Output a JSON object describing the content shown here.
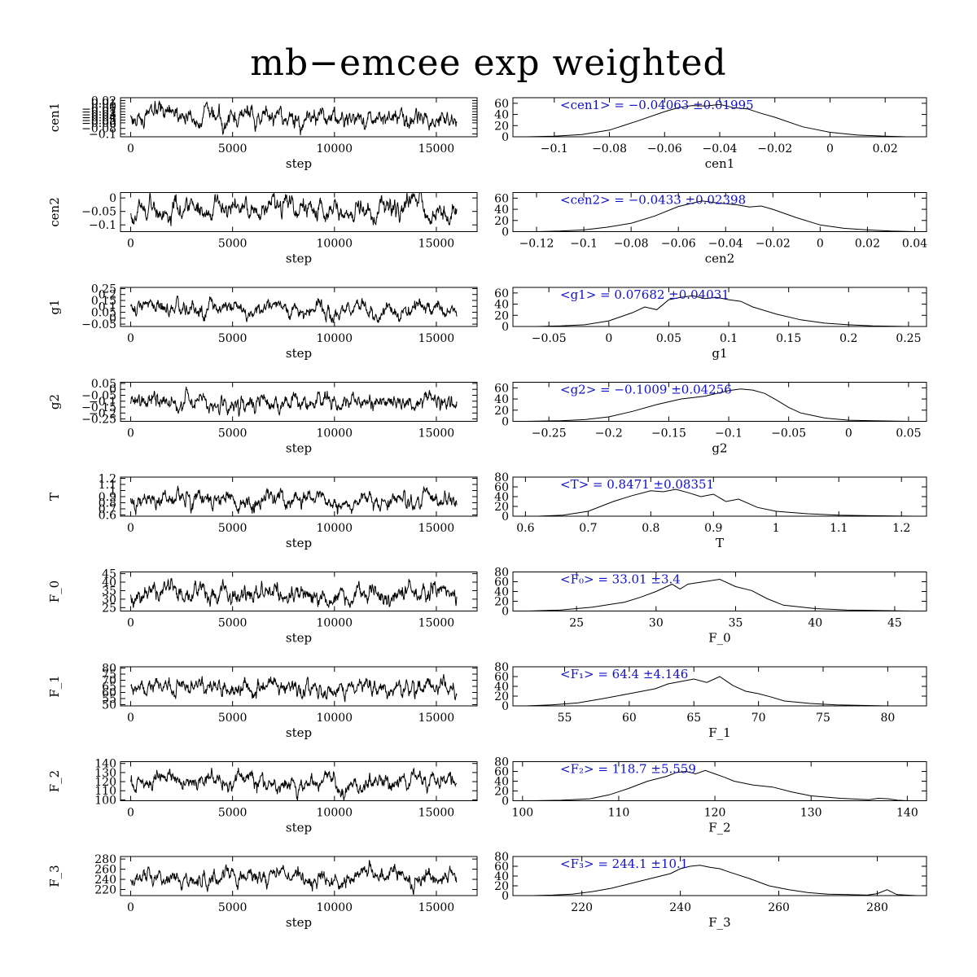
{
  "title": "mb−emcee exp weighted",
  "colors": {
    "line": "#000000",
    "annotation": "#1010c8"
  },
  "chart_data": [
    {
      "type": "line",
      "role": "trace",
      "ylabel": "cen1",
      "xlabel": "step",
      "xticks": [
        0,
        5000,
        10000,
        15000
      ],
      "yticks": [
        "0.02",
        "0.01",
        "0",
        "−0.01",
        "−0.02",
        "−0.03",
        "−0.04",
        "−0.05",
        "−0.06",
        "−0.08",
        "−0.1"
      ],
      "xlim": [
        -500,
        17000
      ],
      "ylim": [
        -0.11,
        0.03
      ],
      "mean": -0.04063,
      "sd": 0.01995,
      "n_steps": 16000
    },
    {
      "type": "line",
      "role": "histogram",
      "xlabel": "cen1",
      "xticks": [
        "−0.1",
        "−0.08",
        "−0.06",
        "−0.04",
        "−0.02",
        "0",
        "0.02"
      ],
      "yticks": [
        "0",
        "20",
        "40",
        "60"
      ],
      "xlim": [
        -0.115,
        0.035
      ],
      "ylim": [
        0,
        70
      ],
      "annotation": "<cen1> = −0.04063 ±0.01995",
      "x": [
        -0.11,
        -0.1,
        -0.09,
        -0.08,
        -0.07,
        -0.06,
        -0.055,
        -0.05,
        -0.045,
        -0.04,
        -0.035,
        -0.03,
        -0.025,
        -0.02,
        -0.01,
        0,
        0.01,
        0.02,
        0.028
      ],
      "y": [
        0,
        1,
        4,
        12,
        28,
        45,
        52,
        56,
        55,
        58,
        52,
        50,
        42,
        35,
        18,
        8,
        3,
        1,
        0
      ]
    },
    {
      "type": "line",
      "role": "trace",
      "ylabel": "cen2",
      "xlabel": "step",
      "xticks": [
        0,
        5000,
        10000,
        15000
      ],
      "yticks": [
        "0",
        "−0.05",
        "−0.1"
      ],
      "xlim": [
        -500,
        17000
      ],
      "ylim": [
        -0.125,
        0.02
      ],
      "mean": -0.0433,
      "sd": 0.02398,
      "n_steps": 16000
    },
    {
      "type": "line",
      "role": "histogram",
      "xlabel": "cen2",
      "xticks": [
        "−0.12",
        "−0.1",
        "−0.08",
        "−0.06",
        "−0.04",
        "−0.02",
        "0",
        "0.02",
        "0.04"
      ],
      "yticks": [
        "0",
        "20",
        "40",
        "60"
      ],
      "xlim": [
        -0.13,
        0.045
      ],
      "ylim": [
        0,
        70
      ],
      "annotation": "<cen2> = −0.0433 ±0.02398",
      "x": [
        -0.12,
        -0.11,
        -0.1,
        -0.09,
        -0.08,
        -0.07,
        -0.06,
        -0.05,
        -0.045,
        -0.04,
        -0.035,
        -0.03,
        -0.025,
        -0.02,
        -0.01,
        0,
        0.01,
        0.02,
        0.03,
        0.04
      ],
      "y": [
        0,
        1,
        3,
        8,
        15,
        28,
        45,
        55,
        52,
        50,
        48,
        44,
        46,
        40,
        25,
        12,
        6,
        3,
        1,
        0
      ]
    },
    {
      "type": "line",
      "role": "trace",
      "ylabel": "g1",
      "xlabel": "step",
      "xticks": [
        0,
        5000,
        10000,
        15000
      ],
      "yticks": [
        "0.25",
        "0.2",
        "0.15",
        "0.1",
        "0.05",
        "0",
        "−0.05"
      ],
      "xlim": [
        -500,
        17000
      ],
      "ylim": [
        -0.07,
        0.26
      ],
      "mean": 0.07682,
      "sd": 0.04031,
      "n_steps": 16000
    },
    {
      "type": "line",
      "role": "histogram",
      "xlabel": "g1",
      "xticks": [
        "−0.05",
        "0",
        "0.05",
        "0.1",
        "0.15",
        "0.2",
        "0.25"
      ],
      "yticks": [
        "0",
        "20",
        "40",
        "60"
      ],
      "xlim": [
        -0.08,
        0.265
      ],
      "ylim": [
        0,
        70
      ],
      "annotation": "<g1> = 0.07682 ±0.04031",
      "x": [
        -0.06,
        -0.04,
        -0.02,
        0,
        0.02,
        0.03,
        0.04,
        0.05,
        0.06,
        0.07,
        0.08,
        0.09,
        0.1,
        0.11,
        0.12,
        0.14,
        0.16,
        0.18,
        0.2,
        0.22,
        0.25
      ],
      "y": [
        0,
        1,
        3,
        10,
        25,
        35,
        30,
        48,
        52,
        55,
        50,
        52,
        48,
        45,
        35,
        22,
        12,
        6,
        3,
        1,
        0
      ]
    },
    {
      "type": "line",
      "role": "trace",
      "ylabel": "g2",
      "xlabel": "step",
      "xticks": [
        0,
        5000,
        10000,
        15000
      ],
      "yticks": [
        "0.05",
        "0",
        "−0.05",
        "−0.1",
        "−0.15",
        "−0.2",
        "−0.25"
      ],
      "xlim": [
        -500,
        17000
      ],
      "ylim": [
        -0.27,
        0.06
      ],
      "mean": -0.1009,
      "sd": 0.04256,
      "n_steps": 16000
    },
    {
      "type": "line",
      "role": "histogram",
      "xlabel": "g2",
      "xticks": [
        "−0.25",
        "−0.2",
        "−0.15",
        "−0.1",
        "−0.05",
        "0",
        "0.05"
      ],
      "yticks": [
        "0",
        "20",
        "40",
        "60"
      ],
      "xlim": [
        -0.28,
        0.065
      ],
      "ylim": [
        0,
        70
      ],
      "annotation": "<g2> = −0.1009 ±0.04256",
      "x": [
        -0.27,
        -0.24,
        -0.22,
        -0.2,
        -0.18,
        -0.16,
        -0.14,
        -0.12,
        -0.1,
        -0.09,
        -0.08,
        -0.07,
        -0.06,
        -0.05,
        -0.04,
        -0.02,
        0,
        0.02,
        0.05
      ],
      "y": [
        0,
        1,
        3,
        8,
        18,
        30,
        40,
        45,
        55,
        58,
        56,
        50,
        38,
        25,
        15,
        6,
        2,
        1,
        0
      ]
    },
    {
      "type": "line",
      "role": "trace",
      "ylabel": "T",
      "xlabel": "step",
      "xticks": [
        0,
        5000,
        10000,
        15000
      ],
      "yticks": [
        "1.2",
        "1.1",
        "1",
        "0.9",
        "0.8",
        "0.7",
        "0.6"
      ],
      "xlim": [
        -500,
        17000
      ],
      "ylim": [
        0.58,
        1.22
      ],
      "mean": 0.8471,
      "sd": 0.08351,
      "n_steps": 16000
    },
    {
      "type": "line",
      "role": "histogram",
      "xlabel": "T",
      "xticks": [
        "0.6",
        "0.7",
        "0.8",
        "0.9",
        "1",
        "1.1",
        "1.2"
      ],
      "yticks": [
        "0",
        "20",
        "40",
        "60",
        "80"
      ],
      "xlim": [
        0.58,
        1.24
      ],
      "ylim": [
        0,
        80
      ],
      "annotation": "<T> = 0.8471 ±0.08351",
      "x": [
        0.62,
        0.66,
        0.7,
        0.74,
        0.77,
        0.8,
        0.82,
        0.84,
        0.86,
        0.88,
        0.9,
        0.92,
        0.94,
        0.97,
        1,
        1.05,
        1.1,
        1.15,
        1.22
      ],
      "y": [
        0,
        2,
        10,
        30,
        42,
        52,
        50,
        55,
        48,
        40,
        45,
        30,
        35,
        18,
        10,
        5,
        2,
        1,
        0
      ]
    },
    {
      "type": "line",
      "role": "trace",
      "ylabel": "F_0",
      "xlabel": "step",
      "xticks": [
        0,
        5000,
        10000,
        15000
      ],
      "yticks": [
        "45",
        "40",
        "35",
        "30",
        "25"
      ],
      "xlim": [
        -500,
        17000
      ],
      "ylim": [
        23,
        46
      ],
      "mean": 33.01,
      "sd": 3.4,
      "n_steps": 16000
    },
    {
      "type": "line",
      "role": "histogram",
      "xlabel": "F_0",
      "xticks": [
        "25",
        "30",
        "35",
        "40",
        "45"
      ],
      "yticks": [
        "0",
        "20",
        "40",
        "60",
        "80"
      ],
      "xlim": [
        21,
        47
      ],
      "ylim": [
        0,
        80
      ],
      "annotation": "<F₀> = 33.01 ±3.4",
      "x": [
        22,
        24,
        26,
        28,
        29,
        30,
        31,
        31.5,
        32,
        33,
        34,
        35,
        36,
        37,
        38,
        40,
        42,
        44,
        46
      ],
      "y": [
        0,
        2,
        8,
        18,
        28,
        40,
        55,
        45,
        55,
        60,
        65,
        50,
        42,
        25,
        12,
        5,
        2,
        1,
        0
      ]
    },
    {
      "type": "line",
      "role": "trace",
      "ylabel": "F_1",
      "xlabel": "step",
      "xticks": [
        0,
        5000,
        10000,
        15000
      ],
      "yticks": [
        "80",
        "75",
        "70",
        "65",
        "60",
        "55",
        "50"
      ],
      "xlim": [
        -500,
        17000
      ],
      "ylim": [
        49,
        81
      ],
      "mean": 64.4,
      "sd": 4.146,
      "n_steps": 16000
    },
    {
      "type": "line",
      "role": "histogram",
      "xlabel": "F_1",
      "xticks": [
        "55",
        "60",
        "65",
        "70",
        "75",
        "80"
      ],
      "yticks": [
        "0",
        "20",
        "40",
        "60",
        "80"
      ],
      "xlim": [
        51,
        83
      ],
      "ylim": [
        0,
        80
      ],
      "annotation": "<F₁> = 64.4 ±4.146",
      "x": [
        52,
        54,
        56,
        58,
        60,
        62,
        63,
        64,
        65,
        66,
        67,
        68,
        69,
        70,
        71,
        72,
        74,
        76,
        78,
        80,
        82
      ],
      "y": [
        0,
        2,
        6,
        15,
        25,
        35,
        45,
        50,
        55,
        48,
        60,
        42,
        30,
        25,
        18,
        10,
        5,
        2,
        1,
        0,
        0
      ]
    },
    {
      "type": "line",
      "role": "trace",
      "ylabel": "F_2",
      "xlabel": "step",
      "xticks": [
        0,
        5000,
        10000,
        15000
      ],
      "yticks": [
        "140",
        "130",
        "120",
        "110",
        "100"
      ],
      "xlim": [
        -500,
        17000
      ],
      "ylim": [
        99,
        142
      ],
      "mean": 118.7,
      "sd": 5.559,
      "n_steps": 16000
    },
    {
      "type": "line",
      "role": "histogram",
      "xlabel": "F_2",
      "xticks": [
        "100",
        "110",
        "120",
        "130",
        "140"
      ],
      "yticks": [
        "0",
        "20",
        "40",
        "60",
        "80"
      ],
      "xlim": [
        99,
        142
      ],
      "ylim": [
        0,
        80
      ],
      "annotation": "<F₂> = 118.7 ±5.559",
      "x": [
        101,
        104,
        107,
        109,
        111,
        113,
        115,
        116,
        117,
        118,
        119,
        120,
        121,
        122,
        124,
        126,
        128,
        130,
        133,
        136,
        137,
        138,
        139,
        140
      ],
      "y": [
        0,
        1,
        4,
        12,
        25,
        40,
        50,
        58,
        60,
        55,
        62,
        55,
        48,
        40,
        32,
        28,
        18,
        10,
        5,
        2,
        5,
        4,
        1,
        0
      ]
    },
    {
      "type": "line",
      "role": "trace",
      "ylabel": "F_3",
      "xlabel": "step",
      "xticks": [
        0,
        5000,
        10000,
        15000
      ],
      "yticks": [
        "280",
        "260",
        "240",
        "220"
      ],
      "xlim": [
        -500,
        17000
      ],
      "ylim": [
        208,
        285
      ],
      "mean": 244.1,
      "sd": 10.1,
      "n_steps": 16000
    },
    {
      "type": "line",
      "role": "histogram",
      "xlabel": "F_3",
      "xticks": [
        "220",
        "240",
        "260",
        "280"
      ],
      "yticks": [
        "0",
        "20",
        "40",
        "60",
        "80"
      ],
      "xlim": [
        206,
        290
      ],
      "ylim": [
        0,
        80
      ],
      "annotation": "<F₃> = 244.1 ±10.1",
      "x": [
        210,
        214,
        218,
        222,
        226,
        230,
        234,
        238,
        240,
        242,
        244,
        246,
        248,
        250,
        254,
        258,
        262,
        266,
        270,
        274,
        278,
        280,
        282,
        284,
        288
      ],
      "y": [
        0,
        1,
        3,
        8,
        15,
        25,
        35,
        45,
        55,
        60,
        62,
        58,
        55,
        48,
        35,
        20,
        12,
        6,
        3,
        2,
        1,
        4,
        12,
        2,
        0
      ]
    }
  ]
}
